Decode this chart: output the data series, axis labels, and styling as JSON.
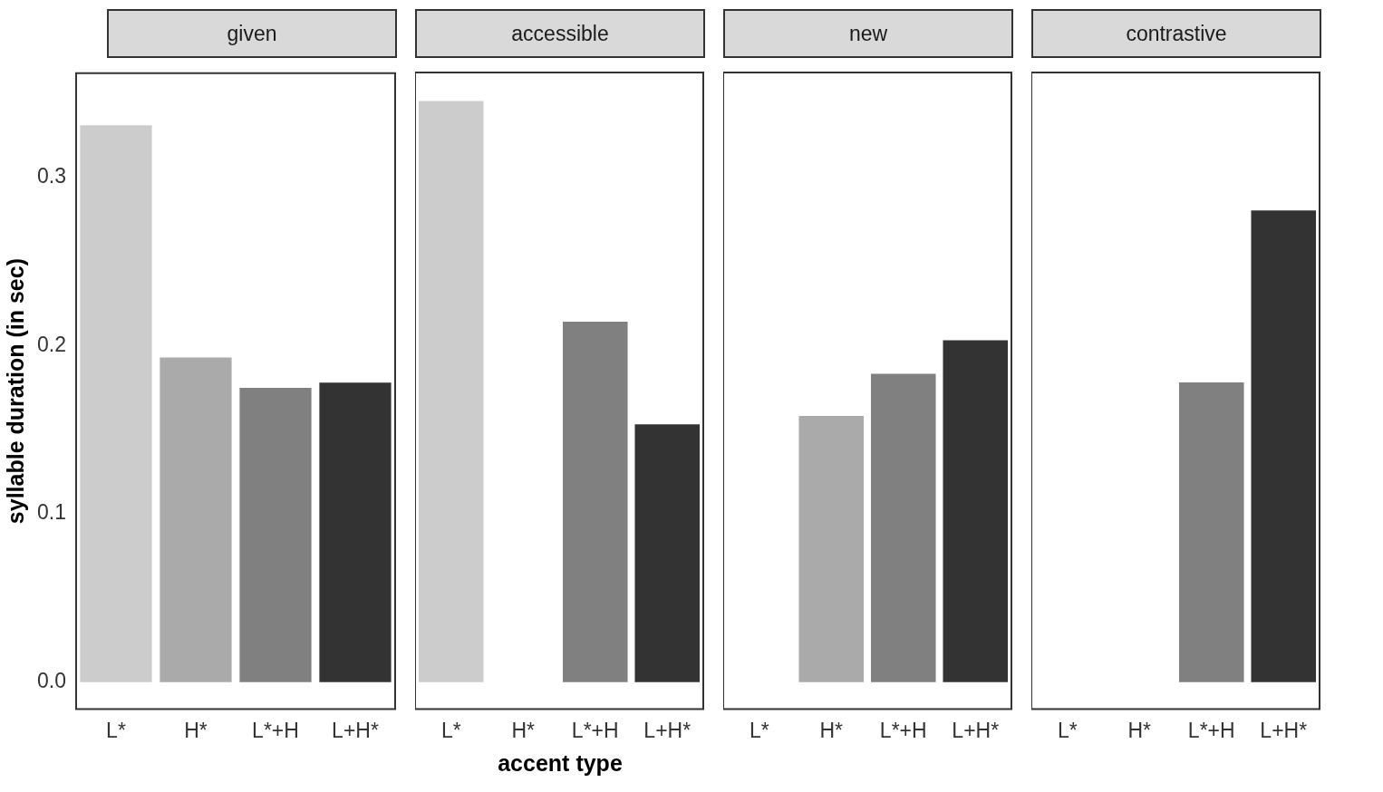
{
  "chart_data": [
    {
      "type": "bar",
      "title": "given",
      "ylabel": "syllable duration (in sec)",
      "categories": [
        "L*",
        "H*",
        "L*+H",
        "L+H*"
      ],
      "values": [
        0.331,
        0.193,
        0.175,
        0.178
      ],
      "colors": [
        "#cccccc",
        "#aaaaaa",
        "#808080",
        "#333333"
      ],
      "ylim": [
        -0.016,
        0.362
      ],
      "yticks": [
        {
          "value": 0,
          "label": "0.0"
        },
        {
          "value": 0.1,
          "label": "0.1"
        },
        {
          "value": 0.2,
          "label": "0.2"
        },
        {
          "value": 0.3,
          "label": "0.3"
        }
      ]
    },
    {
      "type": "bar",
      "title": "accessible",
      "xlabel": "accent type",
      "categories": [
        "L*",
        "H*",
        "L*+H",
        "L+H*"
      ],
      "values": [
        0.345,
        null,
        0.214,
        0.153
      ],
      "colors": [
        "#cccccc",
        "#aaaaaa",
        "#808080",
        "#333333"
      ],
      "ylim": [
        -0.016,
        0.362
      ],
      "tick_labels": "x"
    },
    {
      "type": "bar",
      "title": "new",
      "categories": [
        "L*",
        "H*",
        "L*+H",
        "L+H*"
      ],
      "values": [
        null,
        0.158,
        0.183,
        0.203
      ],
      "colors": [
        "#cccccc",
        "#aaaaaa",
        "#808080",
        "#333333"
      ],
      "ylim": [
        -0.016,
        0.362
      ],
      "tick_labels": "x"
    },
    {
      "type": "bar",
      "title": "contrastive",
      "categories": [
        "L*",
        "H*",
        "L*+H",
        "L+H*"
      ],
      "values": [
        null,
        null,
        0.178,
        0.28
      ],
      "colors": [
        "#cccccc",
        "#aaaaaa",
        "#808080",
        "#333333"
      ],
      "ylim": [
        -0.016,
        0.362
      ],
      "tick_labels": "x"
    }
  ]
}
